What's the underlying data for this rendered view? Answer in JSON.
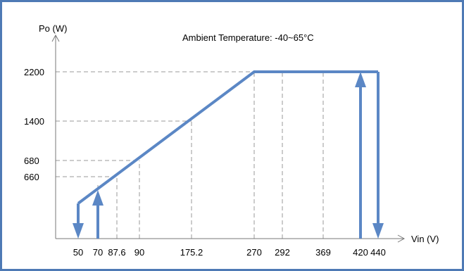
{
  "chart_data": {
    "type": "line",
    "title": "Ambient Temperature: -40~65°C",
    "xlabel": "Vin (V)",
    "ylabel": "Po (W)",
    "x_ticks": [
      "50",
      "70",
      "87.6",
      "90",
      "175.2",
      "270",
      "292",
      "369",
      "420",
      "440"
    ],
    "y_ticks": [
      "2200",
      "1400",
      "680",
      "660"
    ],
    "series": [
      {
        "points": [
          {
            "x": 50,
            "y": 400
          },
          {
            "x": 270,
            "y": 2200
          },
          {
            "x": 440,
            "y": 2200
          }
        ]
      }
    ],
    "dashed_guides": [
      {
        "x": 70,
        "y": 660
      },
      {
        "x": 87.6,
        "y": 660
      },
      {
        "x": 90,
        "y": 680
      },
      {
        "x": 175.2,
        "y": 1400
      },
      {
        "x": 270,
        "y": 2200
      },
      {
        "x": 292,
        "y": 2200
      },
      {
        "x": 369,
        "y": 2200
      },
      {
        "x": 420,
        "y": 2200
      }
    ],
    "arrows": [
      {
        "x": 50,
        "from_y": 400,
        "to_y": 0,
        "direction": "down"
      },
      {
        "x": 70,
        "from_y": 0,
        "to_y": 660,
        "direction": "up"
      },
      {
        "x": 420,
        "from_y": 0,
        "to_y": 2200,
        "direction": "up"
      },
      {
        "x": 440,
        "from_y": 2200,
        "to_y": 0,
        "direction": "down"
      }
    ],
    "colors": {
      "frame": "#4e7ab5",
      "line": "#5b87c5",
      "guide": "#999999"
    }
  }
}
